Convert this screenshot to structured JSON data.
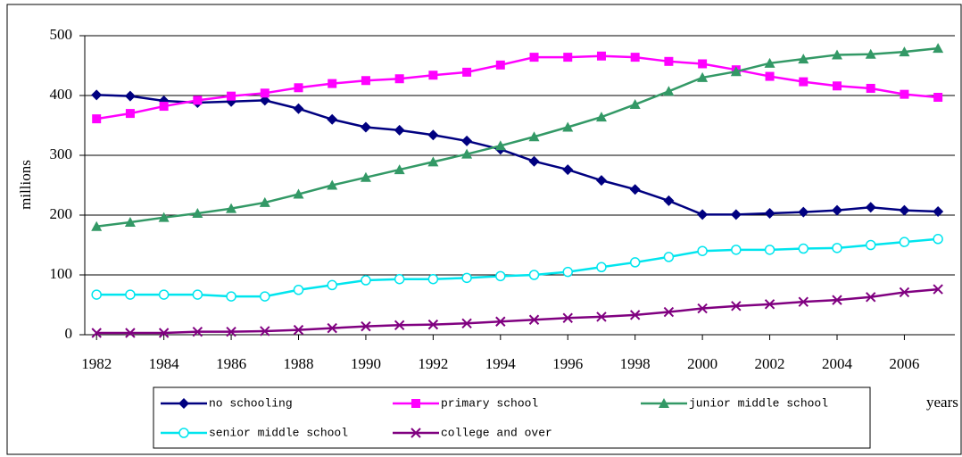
{
  "chart_data": {
    "type": "line",
    "y_label": "millions",
    "x_label": "years",
    "x": [
      1982,
      1983,
      1984,
      1985,
      1986,
      1987,
      1988,
      1989,
      1990,
      1991,
      1992,
      1993,
      1994,
      1995,
      1996,
      1997,
      1998,
      1999,
      2000,
      2001,
      2002,
      2003,
      2004,
      2005,
      2006,
      2007
    ],
    "xlim": [
      1981.65,
      2007.5
    ],
    "xticks": [
      1982,
      1984,
      1986,
      1988,
      1990,
      1992,
      1994,
      1996,
      1998,
      2000,
      2002,
      2004,
      2006
    ],
    "ylim": [
      0,
      500
    ],
    "yticks": [
      0,
      100,
      200,
      300,
      400,
      500
    ],
    "grid": true,
    "legend": "bottom",
    "series": [
      {
        "name": "no schooling",
        "color": "#000080",
        "marker": "diamond",
        "values": [
          401,
          399,
          391,
          388,
          390,
          392,
          378,
          360,
          347,
          342,
          334,
          324,
          310,
          290,
          276,
          258,
          243,
          224,
          201,
          201,
          203,
          205,
          208,
          213,
          208,
          206
        ]
      },
      {
        "name": "primary school",
        "color": "#ff00ff",
        "marker": "square",
        "values": [
          361,
          370,
          382,
          392,
          399,
          404,
          413,
          420,
          425,
          428,
          434,
          439,
          451,
          464,
          464,
          466,
          464,
          457,
          453,
          443,
          432,
          423,
          416,
          412,
          402,
          397
        ]
      },
      {
        "name": "junior middle school",
        "color": "#339966",
        "marker": "triangle",
        "values": [
          181,
          188,
          196,
          203,
          211,
          221,
          235,
          250,
          263,
          276,
          289,
          302,
          316,
          331,
          347,
          364,
          385,
          407,
          430,
          440,
          454,
          461,
          468,
          469,
          473,
          479
        ]
      },
      {
        "name": "senior middle school",
        "color": "#00e5ee",
        "marker": "circle",
        "values": [
          67,
          67,
          67,
          67,
          64,
          64,
          75,
          83,
          91,
          93,
          93,
          95,
          98,
          100,
          105,
          113,
          121,
          130,
          140,
          142,
          142,
          144,
          145,
          150,
          155,
          160
        ]
      },
      {
        "name": "college and over",
        "color": "#800080",
        "marker": "cross",
        "values": [
          3,
          3,
          3,
          5,
          5,
          6,
          8,
          11,
          14,
          16,
          17,
          19,
          22,
          25,
          28,
          30,
          33,
          38,
          44,
          48,
          51,
          55,
          58,
          63,
          71,
          76
        ]
      }
    ]
  }
}
